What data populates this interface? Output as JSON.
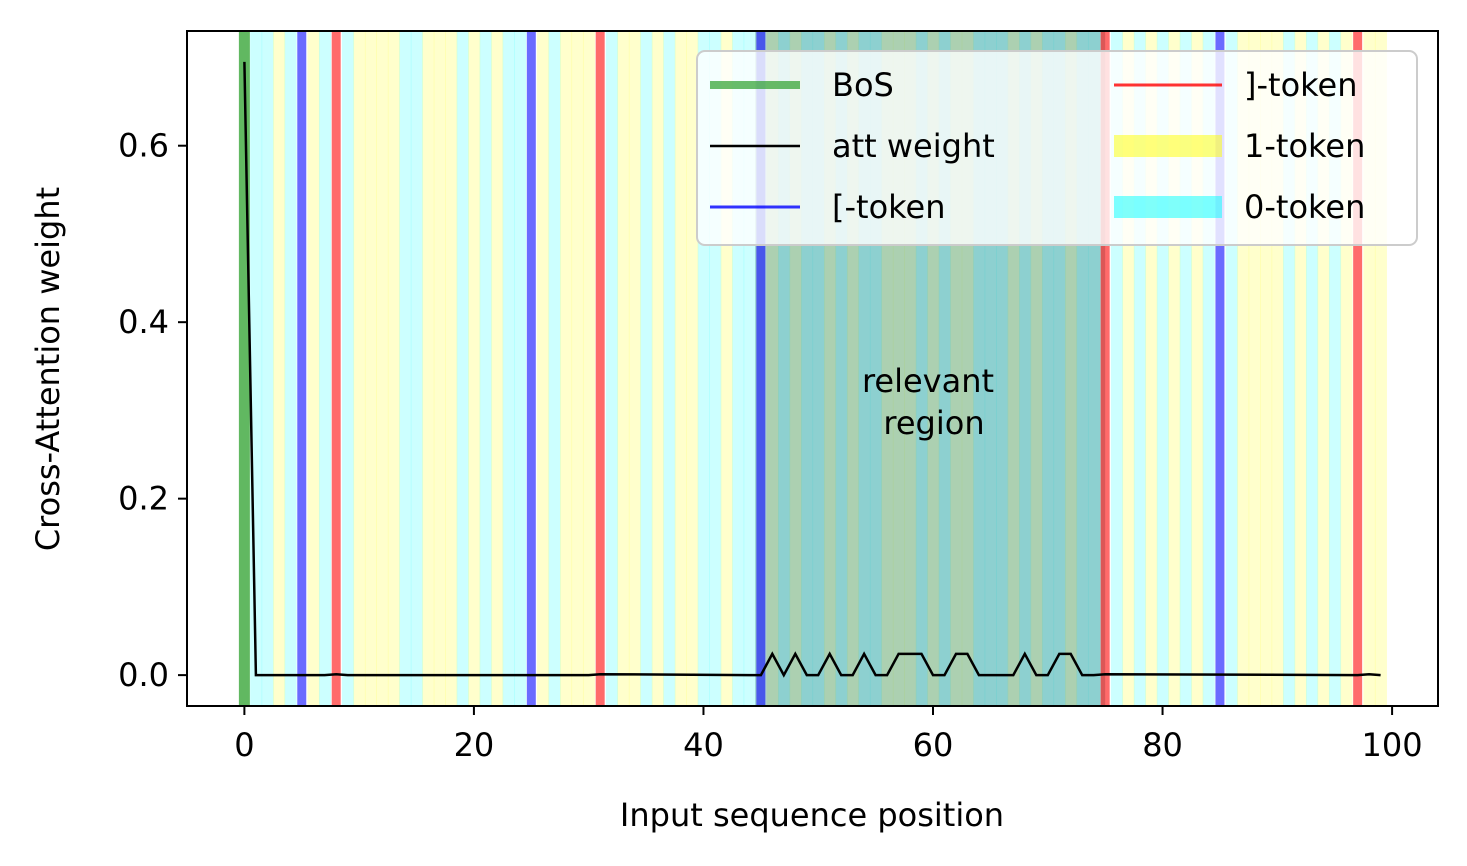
{
  "chart_data": {
    "type": "line",
    "xlabel": "Input sequence position",
    "ylabel": "Cross-Attention weight",
    "xlim": [
      -5,
      104
    ],
    "ylim": [
      -0.035,
      0.73
    ],
    "xticks": [
      0,
      20,
      40,
      60,
      80,
      100
    ],
    "xtick_labels": [
      "0",
      "20",
      "40",
      "60",
      "80",
      "100"
    ],
    "yticks": [
      0.0,
      0.2,
      0.4,
      0.6
    ],
    "ytick_labels": [
      "0.0",
      "0.2",
      "0.4",
      "0.6"
    ],
    "grid": false,
    "legend_position": "top-right",
    "legend": [
      {
        "label": "BoS",
        "kind": "line",
        "color": "#2ca02c"
      },
      {
        "label": "]-token",
        "kind": "line",
        "color": "#ff0000"
      },
      {
        "label": "att weight",
        "kind": "line",
        "color": "#000000"
      },
      {
        "label": "1-token",
        "kind": "patch",
        "color": "#ffff00"
      },
      {
        "label": "[-token",
        "kind": "line",
        "color": "#0000ff"
      },
      {
        "label": "0-token",
        "kind": "patch",
        "color": "#00ffff"
      }
    ],
    "annotation": "relevant\nregion",
    "relevant_region": [
      44.5,
      75
    ],
    "bos_position": 0,
    "open_bracket_positions": [
      5,
      25,
      45,
      85
    ],
    "close_bracket_positions": [
      8,
      31,
      75,
      97
    ],
    "one_token_positions": [
      3,
      6,
      10,
      11,
      12,
      13,
      16,
      17,
      18,
      20,
      22,
      26,
      28,
      29,
      30,
      33,
      34,
      36,
      38,
      39,
      42,
      46,
      48,
      51,
      53,
      56,
      57,
      58,
      60,
      62,
      63,
      67,
      69,
      72,
      77,
      79,
      81,
      83,
      87,
      88,
      89,
      90,
      92,
      94,
      96,
      98,
      99
    ],
    "series": [
      {
        "name": "att weight",
        "color": "#000000",
        "x": [
          0,
          1,
          7,
          8,
          9,
          30,
          31,
          44,
          45,
          46,
          47,
          48,
          49,
          50,
          51,
          52,
          53,
          54,
          55,
          56,
          57,
          58,
          59,
          60,
          61,
          62,
          63,
          64,
          65,
          66,
          67,
          68,
          69,
          70,
          71,
          72,
          73,
          74,
          75,
          97,
          98,
          99
        ],
        "y": [
          0.695,
          0.0,
          0.0,
          0.001,
          0.0,
          0.0,
          0.001,
          0.0,
          0.0,
          0.024,
          0.0,
          0.024,
          0.0,
          0.0,
          0.024,
          0.0,
          0.0,
          0.024,
          0.0,
          0.0,
          0.024,
          0.024,
          0.024,
          0.0,
          0.0,
          0.024,
          0.024,
          0.0,
          0.0,
          0.0,
          0.0,
          0.024,
          0.0,
          0.0,
          0.024,
          0.024,
          0.0,
          0.0,
          0.001,
          0.0,
          0.001,
          0.0
        ]
      }
    ]
  }
}
